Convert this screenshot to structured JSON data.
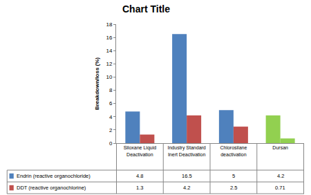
{
  "chart_data": {
    "type": "bar",
    "title": "Chart Title",
    "y_label": "Breakdown/loss (%)",
    "categories": [
      "Siloxane Liquid Deactivation",
      "Industry Standard Inert Deactivation",
      "Chlorosilane deactivation",
      "Dursan"
    ],
    "series": [
      {
        "name": "Endrin (reactive organochloride)",
        "color": "#4f81bd",
        "colors": [
          "#4f81bd",
          "#4f81bd",
          "#4f81bd",
          "#92d050"
        ],
        "values": [
          4.8,
          16.5,
          5,
          4.2
        ]
      },
      {
        "name": "DDT (reactive organochlorine)",
        "color": "#c0504d",
        "colors": [
          "#c0504d",
          "#c0504d",
          "#c0504d",
          "#92d050"
        ],
        "values": [
          1.3,
          4.2,
          2.5,
          0.71
        ]
      }
    ],
    "ylim": [
      0,
      18
    ],
    "yticks": [
      0,
      2,
      4,
      6,
      8,
      10,
      12,
      14,
      16,
      18
    ],
    "grid": false
  }
}
